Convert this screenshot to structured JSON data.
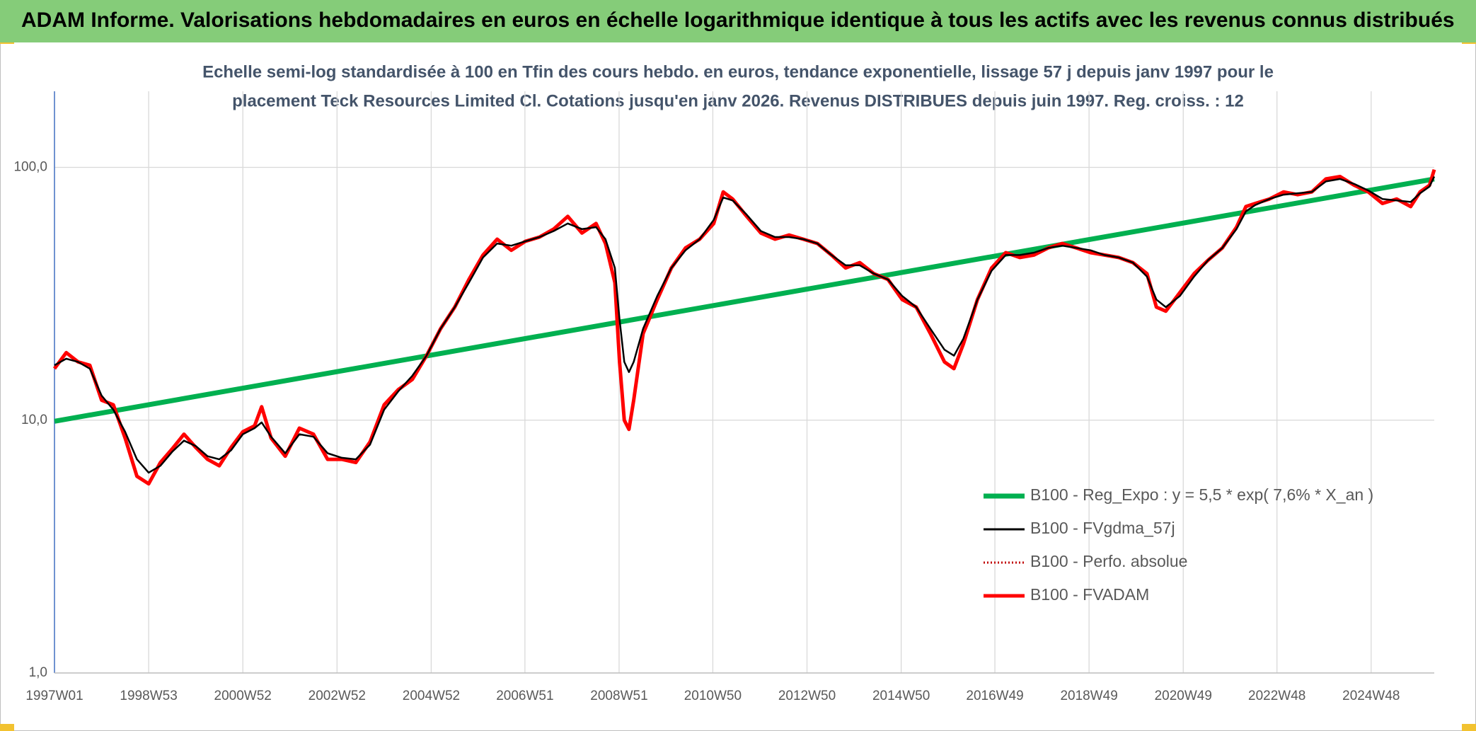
{
  "header": {
    "title": "ADAM Informe. Valorisations hebdomadaires en euros en échelle logarithmique identique à tous les actifs avec les revenus connus distribués"
  },
  "chart_data": {
    "type": "line",
    "subtitle": [
      "Echelle semi-log standardisée à 100 en Tfin des cours hebdo. en euros, tendance exponentielle, lissage 57 j depuis janv 1997 pour le",
      "placement Teck Resources Limited Cl. Cotations jusqu'en janv 2026. Revenus DISTRIBUES depuis juin 1997. Reg. croiss. : 12"
    ],
    "log_scale": true,
    "grid": true,
    "legend": "lower right",
    "ylim": [
      1,
      200
    ],
    "yticks": [
      {
        "value": 1,
        "label": "1,0"
      },
      {
        "value": 10,
        "label": "10,0"
      },
      {
        "value": 100,
        "label": "100,0"
      }
    ],
    "xlim": [
      1997.0,
      2026.3
    ],
    "xticks": [
      {
        "value": 1997.0,
        "label": "1997W01"
      },
      {
        "value": 1999.0,
        "label": "1998W53"
      },
      {
        "value": 2001.0,
        "label": "2000W52"
      },
      {
        "value": 2003.0,
        "label": "2002W52"
      },
      {
        "value": 2005.0,
        "label": "2004W52"
      },
      {
        "value": 2006.99,
        "label": "2006W51"
      },
      {
        "value": 2008.99,
        "label": "2008W51"
      },
      {
        "value": 2010.98,
        "label": "2010W50"
      },
      {
        "value": 2012.98,
        "label": "2012W50"
      },
      {
        "value": 2014.98,
        "label": "2014W50"
      },
      {
        "value": 2016.97,
        "label": "2016W49"
      },
      {
        "value": 2018.97,
        "label": "2018W49"
      },
      {
        "value": 2020.97,
        "label": "2020W49"
      },
      {
        "value": 2022.96,
        "label": "2022W48"
      },
      {
        "value": 2024.96,
        "label": "2024W48"
      }
    ],
    "x": [
      1997.0,
      1997.25,
      1997.5,
      1997.75,
      1998.0,
      1998.25,
      1998.5,
      1998.75,
      1999.0,
      1999.25,
      1999.5,
      1999.75,
      2000.0,
      2000.25,
      2000.5,
      2000.75,
      2001.0,
      2001.25,
      2001.4,
      2001.6,
      2001.9,
      2002.2,
      2002.5,
      2002.8,
      2003.1,
      2003.4,
      2003.7,
      2004.0,
      2004.3,
      2004.6,
      2004.9,
      2005.2,
      2005.5,
      2005.8,
      2006.1,
      2006.4,
      2006.7,
      2007.0,
      2007.3,
      2007.6,
      2007.9,
      2008.2,
      2008.5,
      2008.7,
      2008.9,
      2009.0,
      2009.1,
      2009.2,
      2009.3,
      2009.5,
      2009.8,
      2010.1,
      2010.4,
      2010.7,
      2011.0,
      2011.2,
      2011.4,
      2011.7,
      2012.0,
      2012.3,
      2012.6,
      2012.9,
      2013.2,
      2013.5,
      2013.8,
      2014.1,
      2014.4,
      2014.7,
      2015.0,
      2015.3,
      2015.6,
      2015.9,
      2016.1,
      2016.3,
      2016.6,
      2016.9,
      2017.2,
      2017.5,
      2017.8,
      2018.1,
      2018.4,
      2018.7,
      2019.0,
      2019.3,
      2019.6,
      2019.9,
      2020.2,
      2020.4,
      2020.6,
      2020.9,
      2021.2,
      2021.5,
      2021.8,
      2022.1,
      2022.3,
      2022.5,
      2022.8,
      2023.1,
      2023.4,
      2023.7,
      2024.0,
      2024.3,
      2024.6,
      2024.9,
      2025.2,
      2025.5,
      2025.8,
      2026.0,
      2026.2,
      2026.3
    ],
    "series": [
      {
        "name": "B100 - Reg_Expo : y = 5,5 * exp( 7,6% *  X_an )",
        "color": "#00b050",
        "x": [
          1997.0,
          2026.3
        ],
        "values": [
          9.9,
          90
        ]
      },
      {
        "name": "B100 - FVgdma_57j",
        "color": "#000000",
        "values": [
          16.5,
          17.5,
          17,
          16,
          12.5,
          11,
          9,
          7,
          6.2,
          6.6,
          7.5,
          8.3,
          7.9,
          7.2,
          7,
          7.6,
          8.8,
          9.3,
          9.8,
          8.6,
          7.4,
          8.8,
          8.6,
          7.4,
          7.1,
          7,
          8,
          11,
          13,
          15,
          18,
          23,
          28,
          35,
          44,
          50,
          49,
          51,
          53,
          56,
          60,
          57,
          58,
          52,
          40,
          25,
          17,
          15.5,
          17,
          23,
          31,
          40,
          47,
          52,
          62,
          76,
          74,
          65,
          56,
          53,
          53,
          52,
          50,
          45,
          41,
          41,
          38,
          36,
          31,
          28,
          23,
          19,
          18,
          21,
          30,
          39,
          45,
          45,
          46,
          48,
          49,
          48,
          47,
          45,
          44,
          42,
          37,
          30,
          28,
          31,
          37,
          43,
          48,
          57,
          67,
          71,
          75,
          78,
          79,
          80,
          88,
          90,
          86,
          81,
          75,
          74,
          73,
          79,
          84,
          92
        ]
      },
      {
        "name": "B100 - Perfo. absolue",
        "color": "#c00000",
        "dotted": true,
        "values": [
          16,
          18.5,
          17,
          16.5,
          12,
          11.5,
          8.5,
          6,
          5.6,
          6.8,
          7.7,
          8.8,
          7.8,
          7,
          6.6,
          7.8,
          9,
          9.5,
          11.3,
          8.5,
          7.2,
          9.3,
          8.8,
          7,
          7,
          6.8,
          8.2,
          11.5,
          13.2,
          14.5,
          18,
          23,
          28,
          36,
          45,
          52,
          47,
          51,
          53,
          57,
          64,
          55,
          60,
          50,
          35,
          17,
          10,
          9.2,
          12,
          22,
          30,
          40,
          48,
          52,
          60,
          80,
          75,
          64,
          55,
          52,
          54,
          52,
          50,
          45,
          40,
          42,
          38,
          36,
          30,
          28,
          22,
          17,
          16,
          20,
          30,
          40,
          46,
          44,
          45,
          48,
          50,
          48,
          46,
          45,
          44,
          42,
          38,
          28,
          27,
          32,
          38,
          43,
          48,
          58,
          70,
          72,
          75,
          80,
          78,
          80,
          90,
          92,
          85,
          80,
          72,
          75,
          70,
          80,
          85,
          98
        ]
      },
      {
        "name": "B100 - FVADAM",
        "color": "#ff0000",
        "values": [
          16,
          18.5,
          17,
          16.5,
          12,
          11.5,
          8.5,
          6,
          5.6,
          6.8,
          7.7,
          8.8,
          7.8,
          7,
          6.6,
          7.8,
          9,
          9.5,
          11.3,
          8.5,
          7.2,
          9.3,
          8.8,
          7,
          7,
          6.8,
          8.2,
          11.5,
          13.2,
          14.5,
          18,
          23,
          28,
          36,
          45,
          52,
          47,
          51,
          53,
          57,
          64,
          55,
          60,
          50,
          35,
          17,
          10,
          9.2,
          12,
          22,
          30,
          40,
          48,
          52,
          60,
          80,
          75,
          64,
          55,
          52,
          54,
          52,
          50,
          45,
          40,
          42,
          38,
          36,
          30,
          28,
          22,
          17,
          16,
          20,
          30,
          40,
          46,
          44,
          45,
          48,
          50,
          48,
          46,
          45,
          44,
          42,
          38,
          28,
          27,
          32,
          38,
          43,
          48,
          58,
          70,
          72,
          75,
          80,
          78,
          80,
          90,
          92,
          85,
          80,
          72,
          75,
          70,
          80,
          85,
          98
        ]
      }
    ]
  }
}
